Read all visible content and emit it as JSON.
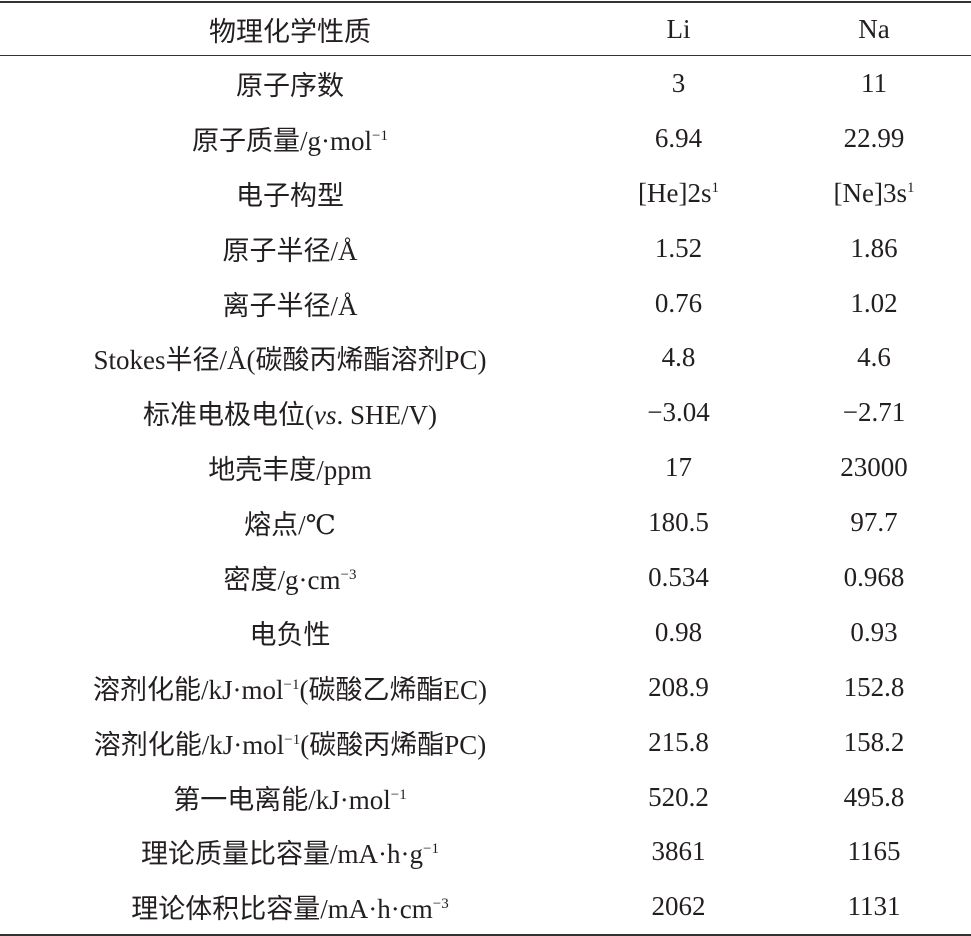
{
  "table": {
    "headers": [
      "物理化学性质",
      "Li",
      "Na"
    ],
    "rows": [
      {
        "property": [
          {
            "t": "原子序数"
          }
        ],
        "li": [
          {
            "t": "3"
          }
        ],
        "na": [
          {
            "t": "11"
          }
        ]
      },
      {
        "property": [
          {
            "t": "原子质量/g·mol"
          },
          {
            "sup": "−1"
          }
        ],
        "li": [
          {
            "t": "6.94"
          }
        ],
        "na": [
          {
            "t": "22.99"
          }
        ]
      },
      {
        "property": [
          {
            "t": "电子构型"
          }
        ],
        "li": [
          {
            "t": "[He]2s"
          },
          {
            "sup": "1"
          }
        ],
        "na": [
          {
            "t": "[Ne]3s"
          },
          {
            "sup": "1"
          }
        ]
      },
      {
        "property": [
          {
            "t": "原子半径/Å"
          }
        ],
        "li": [
          {
            "t": "1.52"
          }
        ],
        "na": [
          {
            "t": "1.86"
          }
        ]
      },
      {
        "property": [
          {
            "t": "离子半径/Å"
          }
        ],
        "li": [
          {
            "t": "0.76"
          }
        ],
        "na": [
          {
            "t": "1.02"
          }
        ]
      },
      {
        "property": [
          {
            "t": "Stokes半径/Å(碳酸丙烯酯溶剂PC)"
          }
        ],
        "li": [
          {
            "t": "4.8"
          }
        ],
        "na": [
          {
            "t": "4.6"
          }
        ]
      },
      {
        "property": [
          {
            "t": "标准电极电位("
          },
          {
            "i": "vs"
          },
          {
            "t": ". SHE/V)"
          }
        ],
        "li": [
          {
            "t": "−3.04"
          }
        ],
        "na": [
          {
            "t": "−2.71"
          }
        ]
      },
      {
        "property": [
          {
            "t": "地壳丰度/ppm"
          }
        ],
        "li": [
          {
            "t": "17"
          }
        ],
        "na": [
          {
            "t": "23000"
          }
        ]
      },
      {
        "property": [
          {
            "t": "熔点/℃"
          }
        ],
        "li": [
          {
            "t": "180.5"
          }
        ],
        "na": [
          {
            "t": "97.7"
          }
        ]
      },
      {
        "property": [
          {
            "t": "密度/g·cm"
          },
          {
            "sup": "−3"
          }
        ],
        "li": [
          {
            "t": "0.534"
          }
        ],
        "na": [
          {
            "t": "0.968"
          }
        ]
      },
      {
        "property": [
          {
            "t": "电负性"
          }
        ],
        "li": [
          {
            "t": "0.98"
          }
        ],
        "na": [
          {
            "t": "0.93"
          }
        ]
      },
      {
        "property": [
          {
            "t": "溶剂化能/kJ·mol"
          },
          {
            "sup": "−1"
          },
          {
            "t": "(碳酸乙烯酯EC)"
          }
        ],
        "li": [
          {
            "t": "208.9"
          }
        ],
        "na": [
          {
            "t": "152.8"
          }
        ]
      },
      {
        "property": [
          {
            "t": "溶剂化能/kJ·mol"
          },
          {
            "sup": "−1"
          },
          {
            "t": "(碳酸丙烯酯PC)"
          }
        ],
        "li": [
          {
            "t": "215.8"
          }
        ],
        "na": [
          {
            "t": "158.2"
          }
        ]
      },
      {
        "property": [
          {
            "t": "第一电离能/kJ·mol"
          },
          {
            "sup": "−1"
          }
        ],
        "li": [
          {
            "t": "520.2"
          }
        ],
        "na": [
          {
            "t": "495.8"
          }
        ]
      },
      {
        "property": [
          {
            "t": "理论质量比容量/mA·h·g"
          },
          {
            "sup": "−1"
          }
        ],
        "li": [
          {
            "t": "3861"
          }
        ],
        "na": [
          {
            "t": "1165"
          }
        ]
      },
      {
        "property": [
          {
            "t": "理论体积比容量/mA·h·cm"
          },
          {
            "sup": "−3"
          }
        ],
        "li": [
          {
            "t": "2062"
          }
        ],
        "na": [
          {
            "t": "1131"
          }
        ]
      }
    ]
  }
}
